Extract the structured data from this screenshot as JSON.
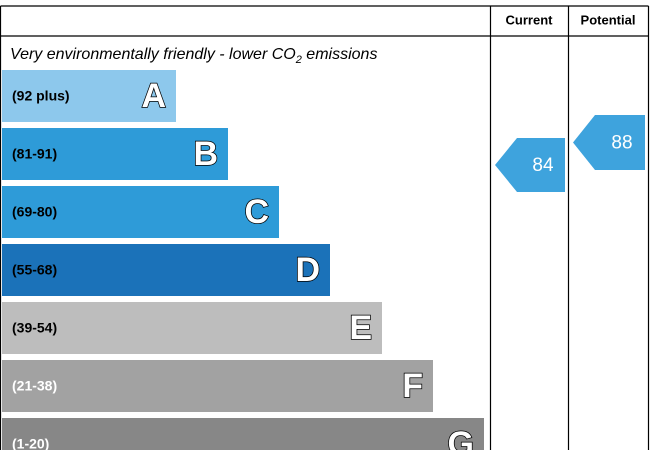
{
  "chart_data": {
    "type": "rating",
    "columns": [
      "Current",
      "Potential"
    ],
    "subtitle": {
      "text": "Very environmentally friendly - lower CO",
      "subscript": "2",
      "suffix": " emissions"
    },
    "bands": [
      {
        "range": "(92 plus)",
        "letter": "A",
        "color": "#8dc8ec"
      },
      {
        "range": "(81-91)",
        "letter": "B",
        "color": "#2e9bd8"
      },
      {
        "range": "(69-80)",
        "letter": "C",
        "color": "#2e9bd8"
      },
      {
        "range": "(55-68)",
        "letter": "D",
        "color": "#1b72b9"
      },
      {
        "range": "(39-54)",
        "letter": "E",
        "color": "#bdbdbd"
      },
      {
        "range": "(21-38)",
        "letter": "F",
        "color": "#a2a2a2"
      },
      {
        "range": "(1-20)",
        "letter": "G",
        "color": "#878787"
      }
    ],
    "current": {
      "value": 84,
      "color": "#3ea3dd"
    },
    "potential": {
      "value": 88,
      "color": "#3ea3dd"
    }
  }
}
